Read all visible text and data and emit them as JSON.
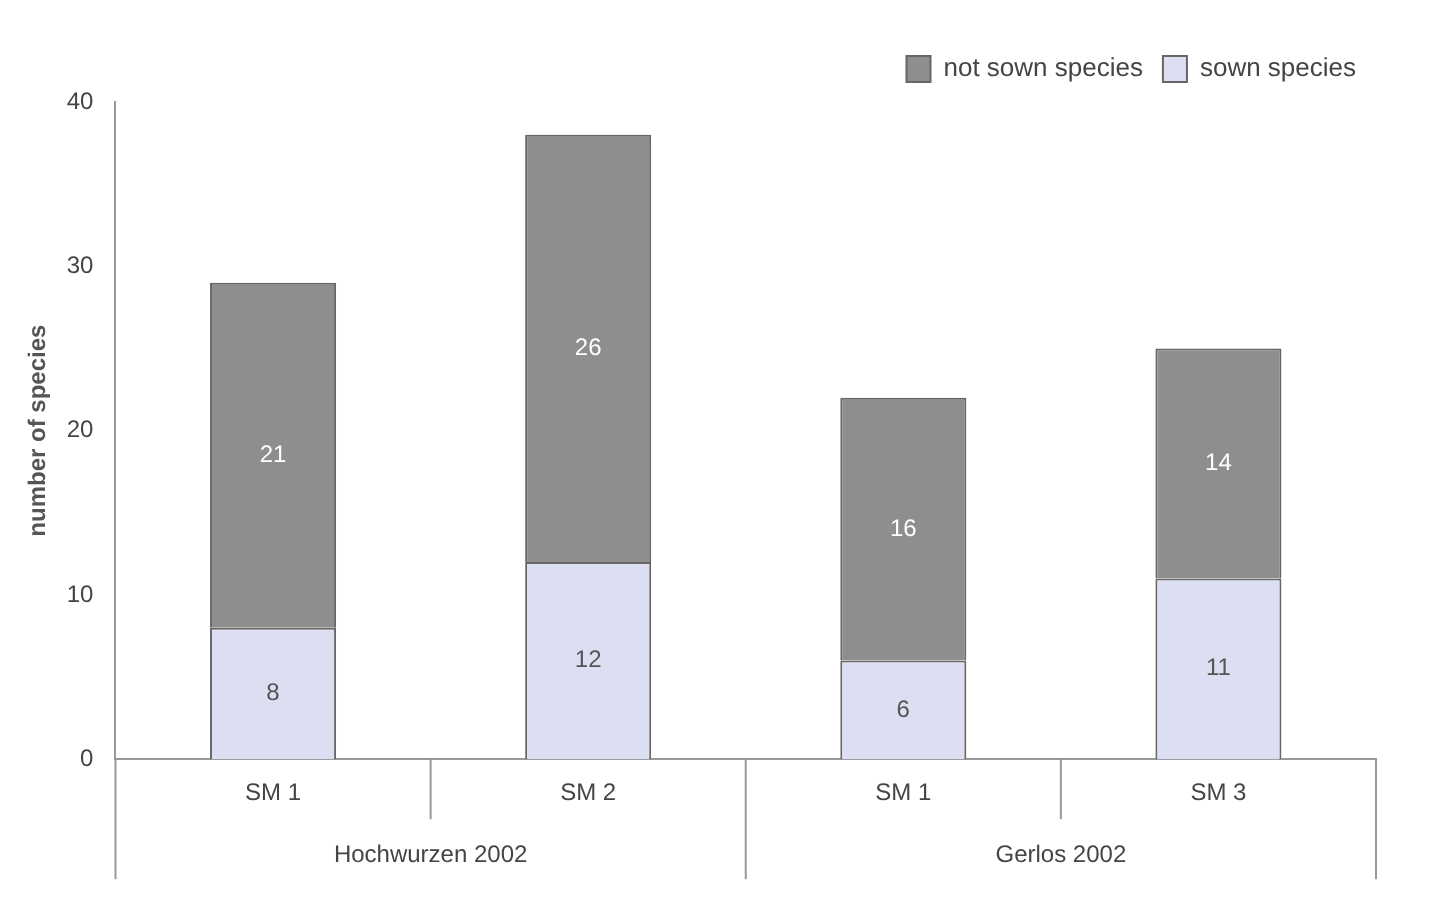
{
  "chart_data": {
    "type": "bar",
    "stacked": true,
    "ylabel": "number of species",
    "categories": [
      "SM 1",
      "SM 2",
      "SM 1",
      "SM 3"
    ],
    "series": [
      {
        "name": "sown species",
        "color": "#dcdff2",
        "values": [
          8,
          12,
          6,
          11
        ]
      },
      {
        "name": "not sown species",
        "color": "#8e8e8e",
        "values": [
          21,
          26,
          16,
          14
        ]
      }
    ],
    "ylim": [
      0,
      40
    ],
    "yticks": [
      0,
      10,
      20,
      30,
      40
    ],
    "grid": false,
    "legend": "top right",
    "data_labels": true,
    "annotations": [
      "Hochwurzen 2002",
      "Gerlos 2002"
    ]
  }
}
